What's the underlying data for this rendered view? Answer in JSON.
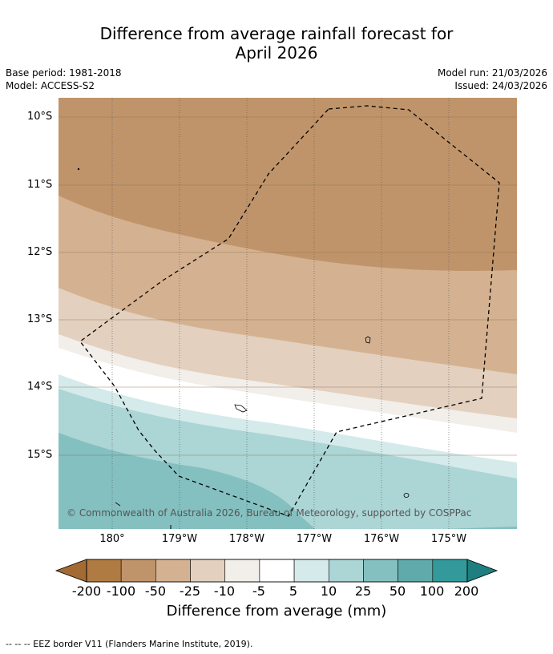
{
  "title_line1": "Difference from average rainfall forecast for",
  "title_line2": "April 2026",
  "base_period": "Base period: 1981-2018",
  "model": "Model: ACCESS-S2",
  "model_run": "Model run: 21/03/2026",
  "issued": "Issued: 24/03/2026",
  "lat_labels": [
    "10°S",
    "11°S",
    "12°S",
    "13°S",
    "14°S",
    "15°S"
  ],
  "lon_labels": [
    "180°",
    "179°W",
    "178°W",
    "177°W",
    "176°W",
    "175°W"
  ],
  "copyright": "© Commonwealth of Australia 2026, Bureau of Meteorology, supported by COSPPac",
  "colorbar": {
    "title": "Difference from average (mm)",
    "labels": [
      "-200",
      "-100",
      "-50",
      "-25",
      "-10",
      "-5",
      "5",
      "10",
      "25",
      "50",
      "100",
      "200"
    ],
    "colors": [
      "#a46a33",
      "#b07a43",
      "#c0946a",
      "#d4b291",
      "#e3d0bf",
      "#f2eee9",
      "#ffffff",
      "#d5eaea",
      "#acd5d5",
      "#84c0c0",
      "#5fabab",
      "#33999a",
      "#1f7e80"
    ]
  },
  "footer": "--  --  -- EEZ border V11 (Flanders Marine Institute, 2019)."
}
